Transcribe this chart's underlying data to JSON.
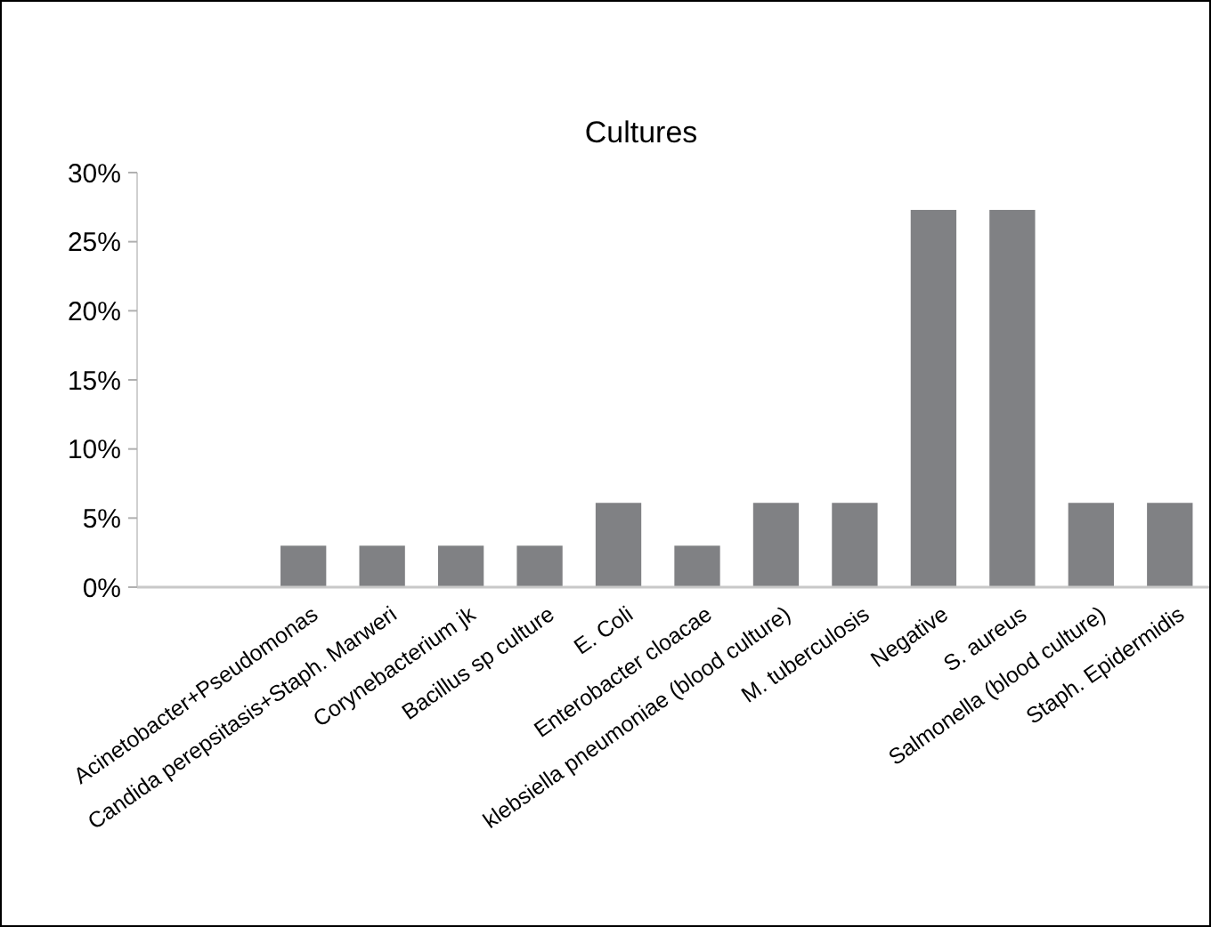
{
  "chart_data": {
    "type": "bar",
    "title": "Cultures",
    "categories": [
      null,
      "Acinetobacter+Pseudomonas",
      "Candida perepsitasis+Staph. Marweri",
      "Corynebacterium jk",
      "Bacillus sp culture",
      "E. Coli",
      "Enterobacter cloacae",
      "klebsiella pneumoniae (blood culture)",
      "M. tuberculosis",
      "Negative",
      "S. aureus",
      "Salmonella (blood culture)",
      "Staph. Epidermidis"
    ],
    "values": [
      null,
      3,
      3,
      3,
      3,
      6.1,
      3,
      6.1,
      6.1,
      27.3,
      27.3,
      6.1,
      6.1
    ],
    "color": "#808184",
    "ylim": [
      0,
      30
    ],
    "yticks": [
      {
        "value": 0,
        "label": "0%"
      },
      {
        "value": 5,
        "label": "5%"
      },
      {
        "value": 10,
        "label": "10%"
      },
      {
        "value": 15,
        "label": "15%"
      },
      {
        "value": 20,
        "label": "20%"
      },
      {
        "value": 25,
        "label": "25%"
      },
      {
        "value": 30,
        "label": "30%"
      }
    ],
    "grid": false
  }
}
